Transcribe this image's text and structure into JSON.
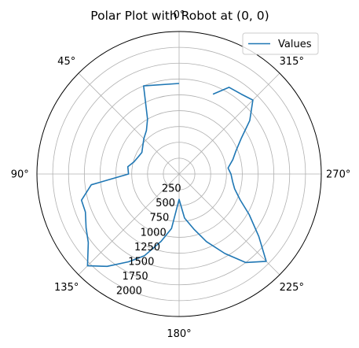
{
  "chart_data": {
    "type": "line",
    "projection": "polar",
    "title": "Polar Plot with Robot at (0, 0)",
    "theta_zero_location": "top",
    "theta_direction": "counterclockwise",
    "angle_ticks": [
      {
        "deg": 0,
        "label": "0°"
      },
      {
        "deg": 45,
        "label": "45°"
      },
      {
        "deg": 90,
        "label": "90°"
      },
      {
        "deg": 135,
        "label": "135°"
      },
      {
        "deg": 180,
        "label": "180°"
      },
      {
        "deg": 225,
        "label": "225°"
      },
      {
        "deg": 270,
        "label": "270°"
      },
      {
        "deg": 315,
        "label": "315°"
      }
    ],
    "radial_ticks": [
      250,
      500,
      750,
      1000,
      1250,
      1500,
      1750,
      2000
    ],
    "radial_tick_labels": [
      "250",
      "500",
      "750",
      "1000",
      "1250",
      "1500",
      "1750",
      "2000"
    ],
    "rlim": [
      0,
      2250
    ],
    "grid": true,
    "legend_position": "top-right",
    "series": [
      {
        "name": "Values",
        "color": "#1f77b4",
        "theta_deg": [
          0,
          22,
          30,
          37,
          45,
          60,
          67,
          75,
          82,
          90,
          97,
          105,
          112,
          120,
          127,
          135,
          142,
          150,
          157,
          165,
          172,
          180,
          187,
          195,
          202,
          210,
          217,
          225,
          232,
          240,
          247,
          255,
          262,
          270,
          277,
          285,
          292,
          300,
          307,
          315,
          322,
          330,
          337
        ],
        "r": [
          1430,
          1500,
          1000,
          860,
          790,
          680,
          700,
          740,
          820,
          800,
          1400,
          1600,
          1600,
          1700,
          1800,
          2050,
          1850,
          1600,
          1400,
          1100,
          870,
          400,
          700,
          900,
          1150,
          1450,
          1750,
          1950,
          1600,
          1280,
          1050,
          910,
          855,
          820,
          780,
          880,
          970,
          1140,
          1400,
          1650,
          1600,
          1580,
          1370
        ]
      }
    ]
  }
}
